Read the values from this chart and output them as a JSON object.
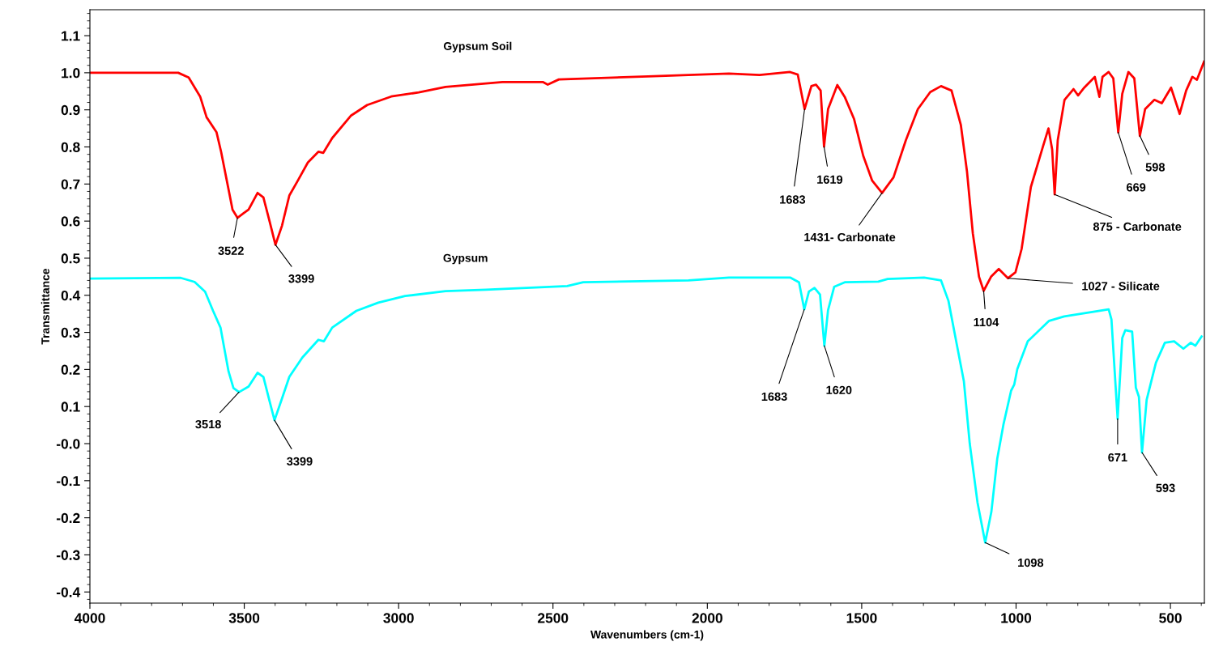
{
  "chart_data": {
    "type": "line",
    "xlabel": "Wavenumbers (cm-1)",
    "ylabel": "Transmittance",
    "xlim": [
      4000,
      390
    ],
    "ylim": [
      -0.43,
      1.17
    ],
    "xticks": [
      4000,
      3500,
      3000,
      2500,
      2000,
      1500,
      1000,
      500
    ],
    "yticks": [
      -0.4,
      -0.3,
      -0.2,
      -0.1,
      {
        "value": 0,
        "label": "-0.0"
      },
      0.1,
      0.2,
      0.3,
      0.4,
      0.5,
      0.6,
      0.7,
      0.8,
      0.9,
      {
        "value": 1.0,
        "label": "1.0"
      },
      1.1
    ],
    "grid": false,
    "legend": false,
    "marker": "none",
    "line_style": "solid",
    "series": [
      {
        "name": "Gypsum Soil",
        "color": "#ff0000",
        "x": [
          4000,
          3714,
          3680,
          3643,
          3622,
          3590,
          3575,
          3556,
          3538,
          3522,
          3504,
          3486,
          3457,
          3438,
          3417,
          3399,
          3378,
          3354,
          3328,
          3294,
          3260,
          3244,
          3215,
          3155,
          3102,
          3024,
          2935,
          2848,
          2664,
          2533,
          2517,
          2481,
          2192,
          1930,
          1831,
          1732,
          1707,
          1685,
          1663,
          1648,
          1633,
          1622,
          1609,
          1579,
          1555,
          1525,
          1495,
          1466,
          1434,
          1397,
          1357,
          1318,
          1278,
          1243,
          1209,
          1179,
          1159,
          1140,
          1120,
          1105,
          1081,
          1056,
          1026,
          1002,
          982,
          952,
          913,
          895,
          883,
          875,
          865,
          843,
          814,
          799,
          779,
          745,
          730,
          720,
          700,
          685,
          669,
          656,
          636,
          617,
          599,
          582,
          552,
          528,
          498,
          470,
          449,
          429,
          414,
          391
        ],
        "values": [
          1.0,
          1.0,
          0.987,
          0.936,
          0.88,
          0.84,
          0.787,
          0.707,
          0.631,
          0.609,
          0.62,
          0.631,
          0.676,
          0.664,
          0.596,
          0.536,
          0.587,
          0.669,
          0.707,
          0.758,
          0.787,
          0.784,
          0.824,
          0.884,
          0.913,
          0.936,
          0.947,
          0.962,
          0.975,
          0.975,
          0.968,
          0.982,
          0.99,
          0.998,
          0.994,
          1.002,
          0.995,
          0.902,
          0.964,
          0.968,
          0.952,
          0.801,
          0.902,
          0.967,
          0.935,
          0.876,
          0.776,
          0.709,
          0.676,
          0.718,
          0.818,
          0.902,
          0.948,
          0.964,
          0.952,
          0.86,
          0.734,
          0.567,
          0.45,
          0.412,
          0.45,
          0.471,
          0.446,
          0.462,
          0.525,
          0.692,
          0.801,
          0.85,
          0.793,
          0.672,
          0.818,
          0.927,
          0.956,
          0.939,
          0.96,
          0.989,
          0.935,
          0.989,
          1.002,
          0.985,
          0.839,
          0.943,
          1.002,
          0.985,
          0.83,
          0.902,
          0.927,
          0.918,
          0.96,
          0.889,
          0.952,
          0.989,
          0.981,
          1.03
        ]
      },
      {
        "name": "Gypsum",
        "color": "#00ffff",
        "x": [
          4000,
          3706,
          3661,
          3627,
          3601,
          3577,
          3564,
          3551,
          3535,
          3517,
          3486,
          3457,
          3438,
          3420,
          3402,
          3378,
          3354,
          3312,
          3260,
          3242,
          3215,
          3137,
          3066,
          2979,
          2848,
          2717,
          2454,
          2402,
          2061,
          1930,
          1732,
          1703,
          1686,
          1671,
          1653,
          1635,
          1621,
          1609,
          1589,
          1555,
          1446,
          1416,
          1298,
          1243,
          1219,
          1194,
          1169,
          1150,
          1125,
          1100,
          1080,
          1061,
          1041,
          1016,
          1006,
          996,
          962,
          893,
          844,
          700,
          691,
          671,
          656,
          646,
          624,
          612,
          602,
          592,
          577,
          547,
          518,
          488,
          458,
          434,
          419,
          399
        ],
        "values": [
          0.445,
          0.447,
          0.436,
          0.41,
          0.358,
          0.313,
          0.254,
          0.195,
          0.15,
          0.139,
          0.154,
          0.191,
          0.18,
          0.121,
          0.063,
          0.121,
          0.18,
          0.232,
          0.28,
          0.276,
          0.313,
          0.358,
          0.38,
          0.398,
          0.411,
          0.415,
          0.425,
          0.435,
          0.44,
          0.448,
          0.448,
          0.435,
          0.362,
          0.41,
          0.42,
          0.402,
          0.264,
          0.36,
          0.423,
          0.435,
          0.437,
          0.444,
          0.448,
          0.44,
          0.385,
          0.276,
          0.168,
          0.0,
          -0.158,
          -0.267,
          -0.184,
          -0.041,
          0.051,
          0.143,
          0.159,
          0.201,
          0.276,
          0.331,
          0.343,
          0.362,
          0.335,
          0.067,
          0.285,
          0.306,
          0.302,
          0.151,
          0.126,
          -0.024,
          0.118,
          0.218,
          0.272,
          0.276,
          0.256,
          0.272,
          0.264,
          0.289
        ]
      }
    ],
    "annotations": [
      {
        "text": "3522",
        "x": 3522,
        "y": 0.609
      },
      {
        "text": "3399",
        "x": 3399,
        "y": 0.536
      },
      {
        "text": "1683",
        "x": 1685,
        "y": 0.902
      },
      {
        "text": "1619",
        "x": 1622,
        "y": 0.801
      },
      {
        "text": "1431- Carbonate",
        "x": 1434,
        "y": 0.676
      },
      {
        "text": "1104",
        "x": 1105,
        "y": 0.412
      },
      {
        "text": "1027 - Silicate",
        "x": 1026,
        "y": 0.446
      },
      {
        "text": "875 - Carbonate",
        "x": 875,
        "y": 0.672
      },
      {
        "text": "669",
        "x": 669,
        "y": 0.839
      },
      {
        "text": "598",
        "x": 599,
        "y": 0.83
      },
      {
        "text": "3518",
        "x": 3517,
        "y": 0.139
      },
      {
        "text": "3399",
        "x": 3402,
        "y": 0.063
      },
      {
        "text": "1683",
        "x": 1686,
        "y": 0.362
      },
      {
        "text": "1620",
        "x": 1621,
        "y": 0.264
      },
      {
        "text": "1098",
        "x": 1100,
        "y": -0.267
      },
      {
        "text": "671",
        "x": 671,
        "y": 0.067
      },
      {
        "text": "593",
        "x": 592,
        "y": -0.024
      }
    ]
  }
}
